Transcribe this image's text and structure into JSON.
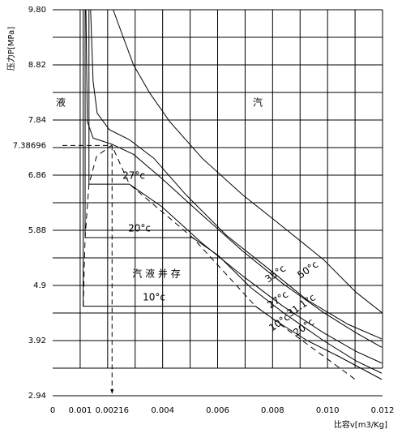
{
  "chart_data": {
    "type": "line",
    "ylabel": "压力P[MPa]",
    "xlabel": "比容v[m3/Kg]",
    "xlim": [
      0,
      0.012
    ],
    "xticks": [
      0,
      0.001,
      0.00216,
      0.004,
      0.006,
      0.008,
      {
        "value": 0.01,
        "label": "0.010"
      },
      0.012
    ],
    "ylim": [
      2.94,
      9.8
    ],
    "yticks": [
      2.94,
      3.92,
      4.9,
      5.88,
      6.86,
      7.38696,
      7.84,
      8.82,
      {
        "value": 9.8,
        "label": "9.80"
      }
    ],
    "grid": true,
    "annotations": [
      "液",
      "汽",
      "汽 液 并 存",
      "10°c",
      "20°c",
      "27°c",
      "35°c",
      "50°c",
      "31.1°c",
      "27°c",
      "20°c",
      "10°c"
    ],
    "series": [
      {
        "color": "#000000",
        "x": [
          0.0022,
          0.0025,
          0.00294,
          0.00353,
          0.00426,
          0.00544,
          0.00691,
          0.00838,
          0.00985,
          0.01103,
          0.01197
        ],
        "values": [
          9.8,
          9.4,
          8.82,
          8.32,
          7.81,
          7.16,
          6.51,
          5.94,
          5.36,
          4.78,
          4.42
        ]
      },
      {
        "color": "#000000",
        "x": [
          0.00138,
          0.00147,
          0.00162,
          0.00206,
          0.00279,
          0.00368,
          0.00485,
          0.00632,
          0.00779,
          0.00926,
          0.01074,
          0.01197
        ],
        "values": [
          9.8,
          8.53,
          7.96,
          7.67,
          7.49,
          7.16,
          6.51,
          5.79,
          5.22,
          4.64,
          4.21,
          3.95
        ]
      },
      {
        "color": "#000000",
        "x": [
          0.00121,
          0.00126,
          0.00147,
          0.00215,
          0.00294,
          0.00397,
          0.00544,
          0.00691,
          0.00838,
          0.00985,
          0.01103,
          0.01197
        ],
        "values": [
          9.8,
          7.81,
          7.52,
          7.41,
          7.23,
          6.8,
          6.15,
          5.51,
          4.93,
          4.42,
          4.06,
          3.8
        ]
      },
      {
        "color": "#000000",
        "x": [
          0.00132,
          0.00132,
          0.00279,
          0.00397,
          0.00544,
          0.00691,
          0.00838,
          0.00985,
          0.01103,
          0.01197
        ],
        "values": [
          9.8,
          6.7,
          6.7,
          6.3,
          5.65,
          5.07,
          4.53,
          4.06,
          3.73,
          3.52
        ]
      },
      {
        "color": "#000000",
        "x": [
          0.00118,
          0.00118,
          0.00509,
          0.00603,
          0.00721,
          0.00838,
          0.00985,
          0.01103,
          0.01197
        ],
        "values": [
          9.8,
          5.75,
          5.75,
          5.43,
          4.86,
          4.42,
          3.92,
          3.56,
          3.34
        ]
      },
      {
        "color": "#000000",
        "x": [
          0.00111,
          0.00111,
          0.00738,
          0.00809,
          0.00926,
          0.01044,
          0.01197
        ],
        "values": [
          9.8,
          4.53,
          4.53,
          4.28,
          3.92,
          3.63,
          3.23
        ]
      },
      {
        "color": "#000000",
        "dashed": true,
        "x": [
          0.00111,
          0.00118,
          0.00132,
          0.0016,
          0.00215,
          0.00279,
          0.00509,
          0.00738,
          0.01109
        ],
        "values": [
          4.53,
          5.75,
          6.7,
          7.2,
          7.39,
          6.7,
          5.75,
          4.53,
          3.2
        ]
      }
    ]
  }
}
